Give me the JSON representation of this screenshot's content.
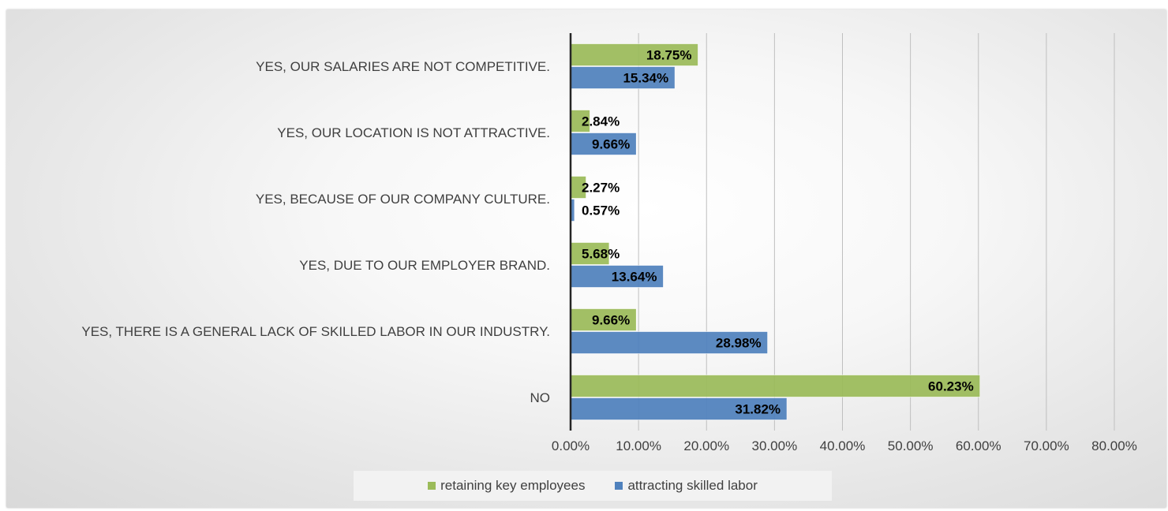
{
  "chart_data": {
    "type": "bar",
    "orientation": "horizontal",
    "categories": [
      "NO",
      "YES, THERE IS A GENERAL LACK OF SKILLED LABOR IN OUR INDUSTRY.",
      "YES, DUE TO OUR EMPLOYER BRAND.",
      "YES, BECAUSE OF OUR COMPANY CULTURE.",
      "YES, OUR LOCATION IS NOT ATTRACTIVE.",
      "YES, OUR SALARIES ARE NOT COMPETITIVE."
    ],
    "series": [
      {
        "name": "retaining key employees",
        "color": "#9bbb59",
        "values": [
          60.23,
          9.66,
          5.68,
          2.27,
          2.84,
          18.75
        ],
        "labels": [
          "60.23%",
          "9.66%",
          "5.68%",
          "2.27%",
          "2.84%",
          "18.75%"
        ]
      },
      {
        "name": "attracting skilled labor",
        "color": "#4f81bd",
        "values": [
          31.82,
          28.98,
          13.64,
          0.57,
          9.66,
          15.34
        ],
        "labels": [
          "31.82%",
          "28.98%",
          "13.64%",
          "0.57%",
          "9.66%",
          "15.34%"
        ]
      }
    ],
    "xlim": [
      0,
      80
    ],
    "xticks": [
      "0.00%",
      "10.00%",
      "20.00%",
      "30.00%",
      "40.00%",
      "50.00%",
      "60.00%",
      "70.00%",
      "80.00%"
    ],
    "grid": "vertical",
    "legend_position": "bottom"
  },
  "legend": {
    "items": [
      {
        "label": "retaining key employees",
        "color": "#9bbb59"
      },
      {
        "label": "attracting skilled labor",
        "color": "#4f81bd"
      }
    ]
  }
}
